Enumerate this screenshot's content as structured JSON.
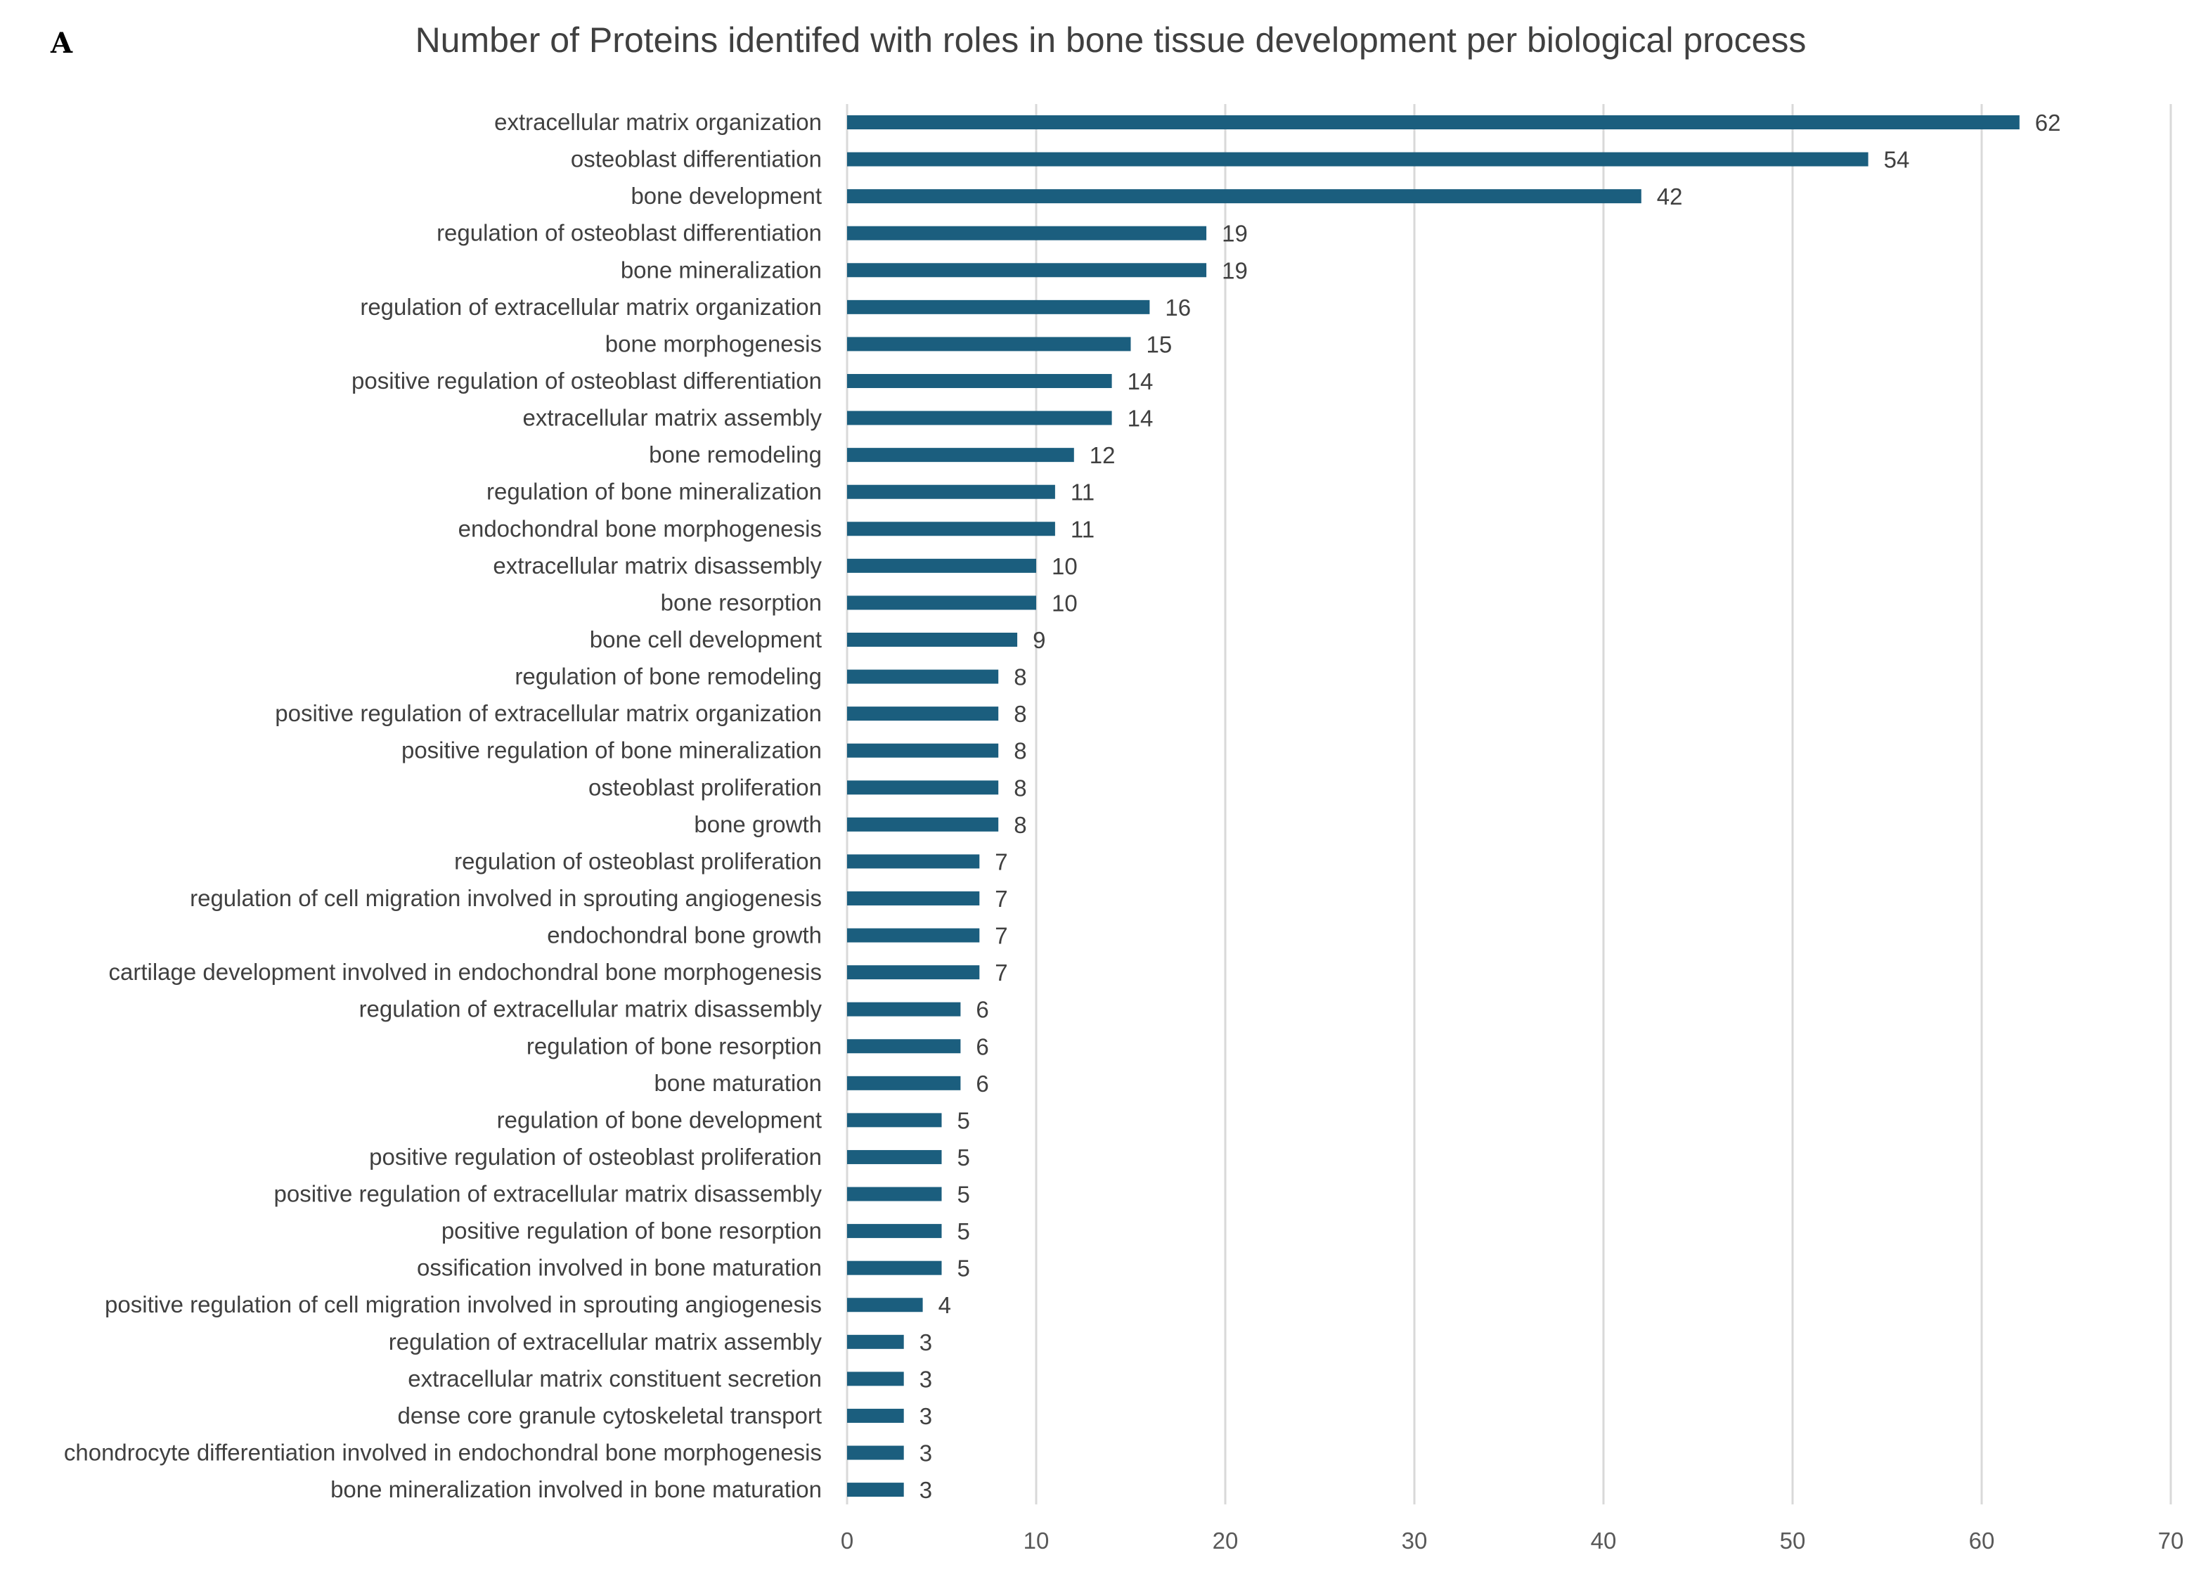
{
  "panel_label": "A",
  "colors": {
    "bar": "#1b5e7e",
    "grid": "#d9d9d9",
    "text": "#404040"
  },
  "chart_data": {
    "type": "bar",
    "orientation": "horizontal",
    "title": "Number of Proteins identifed with roles in bone tissue development per biological process",
    "xlabel": "",
    "ylabel": "",
    "xlim": [
      0,
      70
    ],
    "xticks": [
      0,
      10,
      20,
      30,
      40,
      50,
      60,
      70
    ],
    "grid": "vertical",
    "data_labels": true,
    "categories": [
      "extracellular matrix organization",
      "osteoblast differentiation",
      "bone development",
      "regulation of osteoblast differentiation",
      "bone mineralization",
      "regulation of extracellular matrix organization",
      "bone morphogenesis",
      "positive regulation of osteoblast differentiation",
      "extracellular matrix assembly",
      "bone remodeling",
      "regulation of bone mineralization",
      "endochondral bone morphogenesis",
      "extracellular matrix disassembly",
      "bone resorption",
      "bone cell development",
      "regulation of bone remodeling",
      "positive regulation of extracellular matrix organization",
      "positive regulation of bone mineralization",
      "osteoblast proliferation",
      "bone growth",
      "regulation of osteoblast proliferation",
      "regulation of cell migration involved in sprouting angiogenesis",
      "endochondral bone growth",
      "cartilage development involved in endochondral bone morphogenesis",
      "regulation of extracellular matrix disassembly",
      "regulation of bone resorption",
      "bone maturation",
      "regulation of bone development",
      "positive regulation of osteoblast proliferation",
      "positive regulation of extracellular matrix disassembly",
      "positive regulation of bone resorption",
      "ossification involved in bone maturation",
      "positive regulation of cell migration involved in sprouting angiogenesis",
      "regulation of extracellular matrix assembly",
      "extracellular matrix constituent secretion",
      "dense core granule cytoskeletal transport",
      "chondrocyte differentiation involved in endochondral bone morphogenesis",
      "bone mineralization involved in bone maturation"
    ],
    "values": [
      62,
      54,
      42,
      19,
      19,
      16,
      15,
      14,
      14,
      12,
      11,
      11,
      10,
      10,
      9,
      8,
      8,
      8,
      8,
      8,
      7,
      7,
      7,
      7,
      6,
      6,
      6,
      5,
      5,
      5,
      5,
      5,
      4,
      3,
      3,
      3,
      3,
      3
    ]
  }
}
